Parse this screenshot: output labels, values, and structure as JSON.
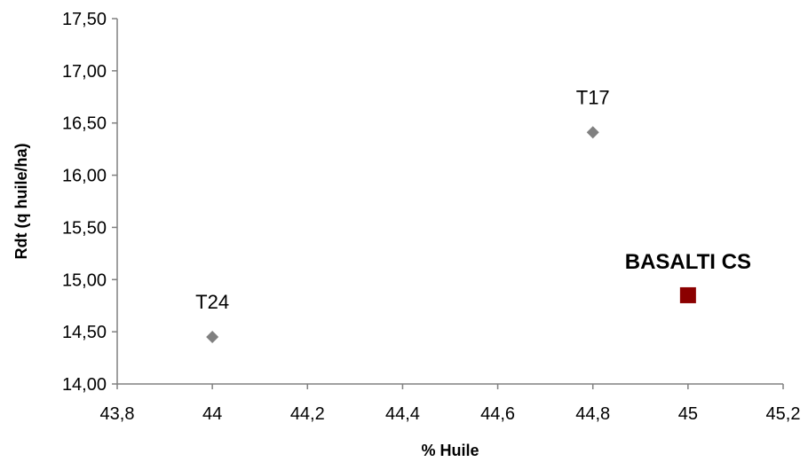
{
  "chart_data": {
    "type": "scatter",
    "xlabel": "% Huile",
    "ylabel": "Rdt (q huile/ha)",
    "xlim": [
      43.8,
      45.2
    ],
    "ylim": [
      14.0,
      17.5
    ],
    "x_ticks": [
      "43,8",
      "44",
      "44,2",
      "44,4",
      "44,6",
      "44,8",
      "45",
      "45,2"
    ],
    "y_ticks": [
      "14,00",
      "14,50",
      "15,00",
      "15,50",
      "16,00",
      "16,50",
      "17,00",
      "17,50"
    ],
    "grid": false,
    "legend": "none",
    "points": [
      {
        "label": "T24",
        "x": 44.0,
        "y": 14.45,
        "marker": "diamond",
        "color": "#808080"
      },
      {
        "label": "T17",
        "x": 44.8,
        "y": 16.41,
        "marker": "diamond",
        "color": "#808080"
      },
      {
        "label": "BASALTI CS",
        "x": 45.0,
        "y": 14.85,
        "marker": "square",
        "color": "#8b0000",
        "emphasis": true
      }
    ]
  }
}
